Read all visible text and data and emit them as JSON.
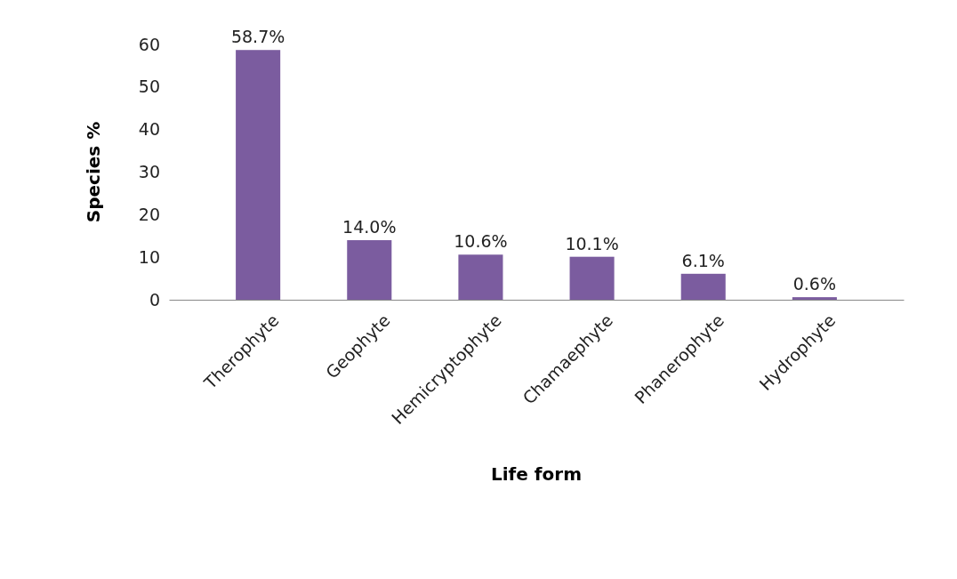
{
  "chart_data": {
    "type": "bar",
    "xlabel": "Life form",
    "ylabel": "Species %",
    "categories": [
      "Therophyte",
      "Geophyte",
      "Hemicryptophyte",
      "Chamaephyte",
      "Phanerophyte",
      "Hydrophyte"
    ],
    "values": [
      58.7,
      14.0,
      10.6,
      10.1,
      6.1,
      0.6
    ],
    "value_labels": [
      "58.7%",
      "14.0%",
      "10.6%",
      "10.1%",
      "6.1%",
      "0.6%"
    ],
    "color": "#7b5c9f",
    "ylim": [
      0,
      60
    ],
    "yticks": [
      0,
      10,
      20,
      30,
      40,
      50,
      60
    ],
    "grid": false
  }
}
